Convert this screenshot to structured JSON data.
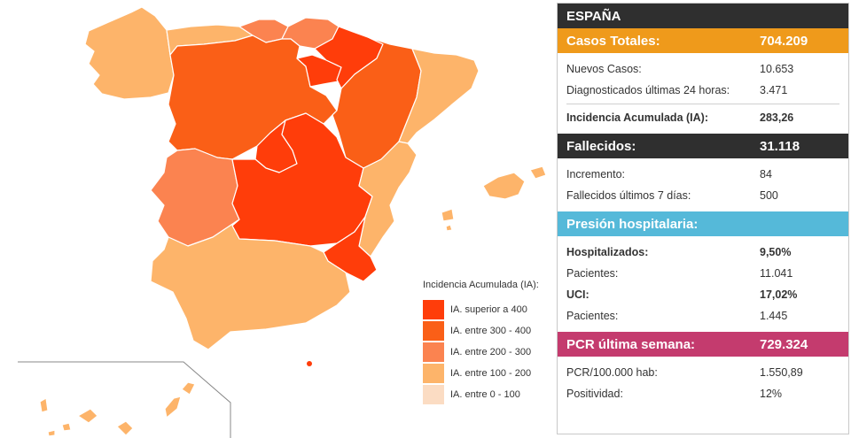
{
  "colors": {
    "c400": "#ff3d0a",
    "c300": "#fa5f17",
    "c200": "#fb8350",
    "c100": "#fdb46a",
    "c0": "#fbdcc3",
    "dark": "#2f2f2f",
    "orange": "#ef9a1b",
    "blue": "#55b9d9",
    "magenta": "#c43b6e"
  },
  "legend": {
    "title": "Incidencia Acumulada (IA):",
    "items": [
      "IA. superior a 400",
      "IA. entre 300 - 400",
      "IA. entre 200 - 300",
      "IA. entre 100 - 200",
      "IA. entre 0 - 100"
    ]
  },
  "panel": {
    "title": "ESPAÑA",
    "casos": {
      "label": "Casos Totales:",
      "value": "704.209",
      "rows": [
        {
          "label": "Nuevos Casos:",
          "value": "10.653"
        },
        {
          "label": "Diagnosticados últimas 24 horas:",
          "value": "3.471"
        }
      ],
      "ia": {
        "label": "Incidencia Acumulada (IA):",
        "value": "283,26"
      }
    },
    "fallecidos": {
      "label": "Fallecidos:",
      "value": "31.118",
      "rows": [
        {
          "label": "Incremento:",
          "value": "84"
        },
        {
          "label": "Fallecidos últimos 7 días:",
          "value": "500"
        }
      ]
    },
    "presion": {
      "label": "Presión hospitalaria:",
      "rows": [
        {
          "label": "Hospitalizados:",
          "value": "9,50%"
        },
        {
          "label": "Pacientes:",
          "value": "11.041"
        },
        {
          "label": "UCI:",
          "value": "17,02%"
        },
        {
          "label": "Pacientes:",
          "value": "1.445"
        }
      ]
    },
    "pcr": {
      "label": "PCR última semana:",
      "value": "729.324",
      "rows": [
        {
          "label": "PCR/100.000 hab:",
          "value": "1.550,89"
        },
        {
          "label": "Positividad:",
          "value": "12%"
        }
      ]
    }
  }
}
